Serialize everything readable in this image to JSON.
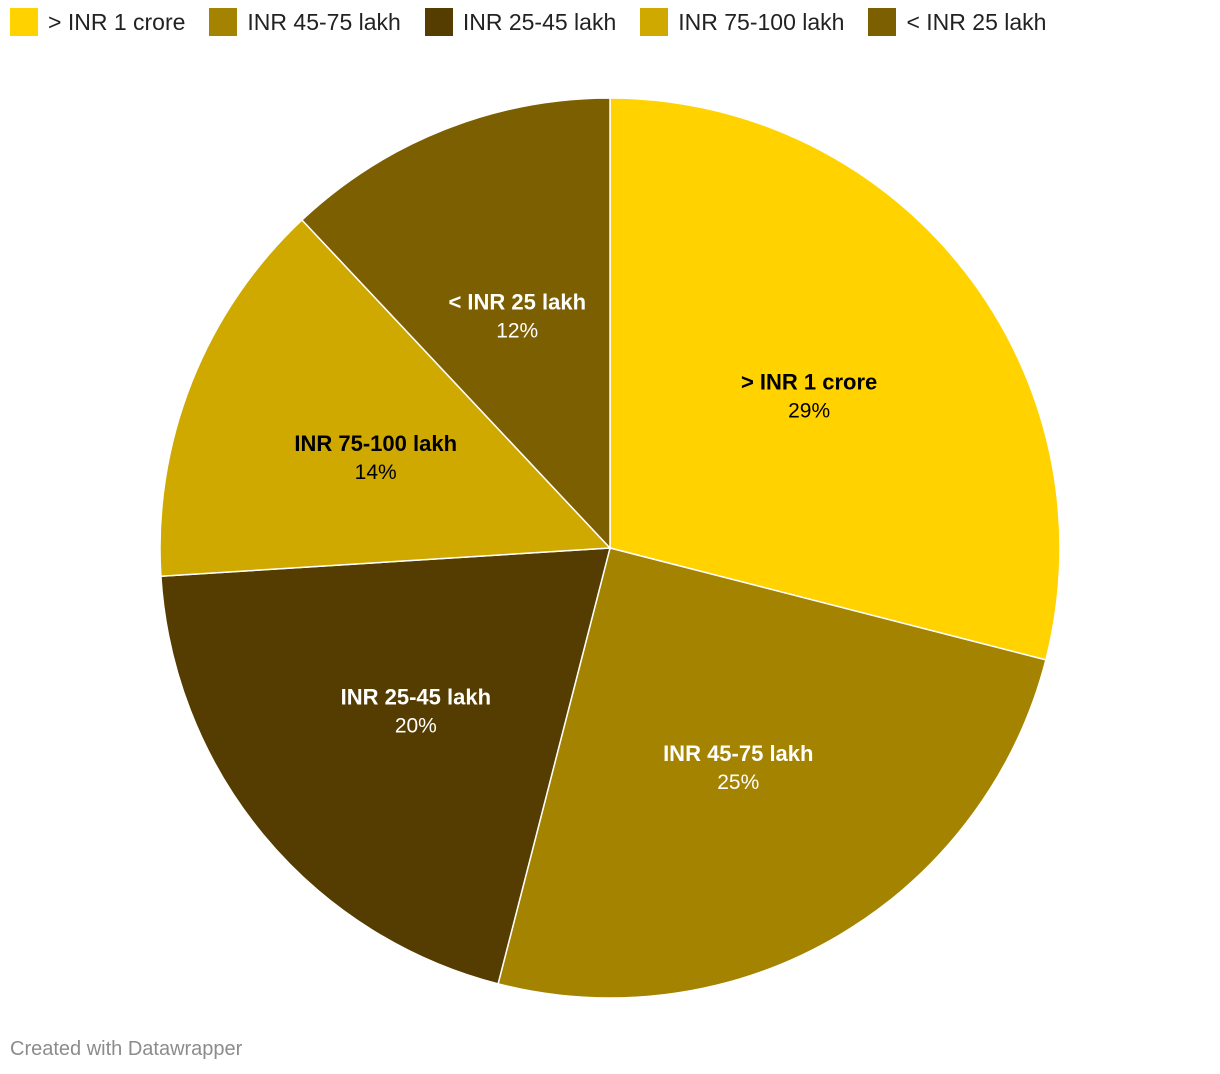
{
  "chart_data": {
    "type": "pie",
    "title": "",
    "legend_position": "top-left",
    "slices": [
      {
        "label": "> INR 1 crore",
        "value": 29,
        "display": "29%",
        "color": "#ffd200",
        "text_color": "#000000"
      },
      {
        "label": "INR 45-75 lakh",
        "value": 25,
        "display": "25%",
        "color": "#a38300",
        "text_color": "#ffffff"
      },
      {
        "label": "INR 25-45 lakh",
        "value": 20,
        "display": "20%",
        "color": "#553c00",
        "text_color": "#ffffff"
      },
      {
        "label": "INR 75-100 lakh",
        "value": 14,
        "display": "14%",
        "color": "#cfa800",
        "text_color": "#000000"
      },
      {
        "label": "< INR 25 lakh",
        "value": 12,
        "display": "12%",
        "color": "#7c5f00",
        "text_color": "#ffffff"
      }
    ]
  },
  "footer": {
    "credit": "Created with Datawrapper"
  }
}
